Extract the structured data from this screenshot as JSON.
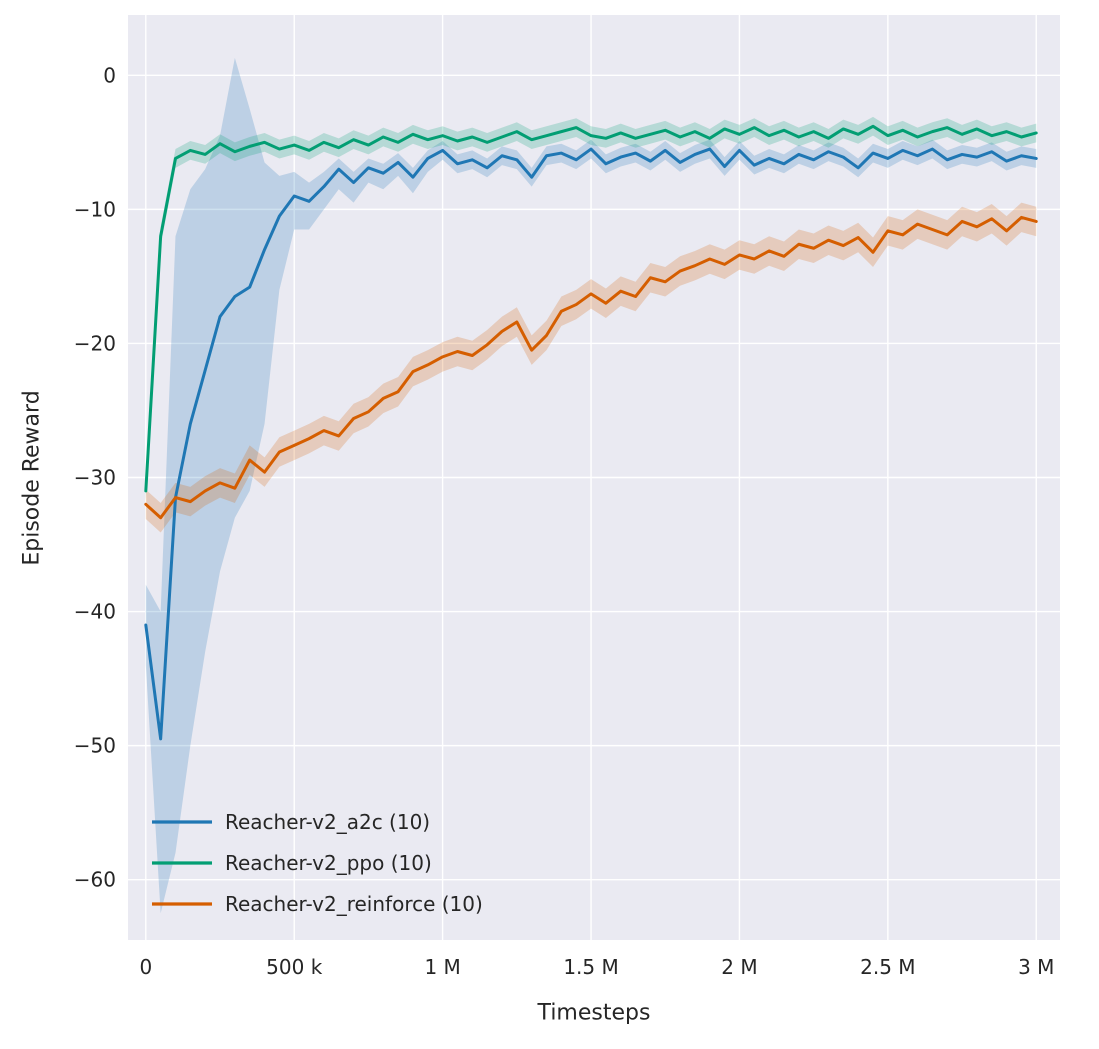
{
  "figure": {
    "background": "#ffffff",
    "axes_background": "#eaeaf2",
    "grid_color": "#ffffff",
    "text_color": "#262626",
    "band_opacity": 0.22
  },
  "chart_data": {
    "type": "line",
    "title": "",
    "xlabel": "Timesteps",
    "ylabel": "Episode Reward",
    "grid": true,
    "legend_position": "lower left",
    "xlim": [
      -60000,
      3080000
    ],
    "ylim": [
      -64.5,
      4.5
    ],
    "x_step": 50000,
    "xticks": [
      [
        0,
        "0"
      ],
      [
        500000,
        "500 k"
      ],
      [
        1000000,
        "1 M"
      ],
      [
        1500000,
        "1.5 M"
      ],
      [
        2000000,
        "2 M"
      ],
      [
        2500000,
        "2.5 M"
      ],
      [
        3000000,
        "3 M"
      ]
    ],
    "yticks": [
      [
        0,
        "0"
      ],
      [
        -10,
        "−10"
      ],
      [
        -20,
        "−20"
      ],
      [
        -30,
        "−30"
      ],
      [
        -40,
        "−40"
      ],
      [
        -50,
        "−50"
      ],
      [
        -60,
        "−60"
      ]
    ],
    "series": [
      {
        "id": "a2c",
        "name": "Reacher-v2_a2c (10)",
        "color": "#1f77b4",
        "values": [
          -41.0,
          -49.5,
          -31.5,
          -26.0,
          -22.0,
          -18.0,
          -16.5,
          -15.8,
          -13.0,
          -10.5,
          -9.0,
          -9.4,
          -8.3,
          -7.0,
          -8.0,
          -6.9,
          -7.3,
          -6.5,
          -7.6,
          -6.2,
          -5.6,
          -6.6,
          -6.3,
          -6.9,
          -6.0,
          -6.3,
          -7.6,
          -6.0,
          -5.8,
          -6.3,
          -5.5,
          -6.6,
          -6.1,
          -5.8,
          -6.4,
          -5.6,
          -6.5,
          -5.9,
          -5.5,
          -6.8,
          -5.6,
          -6.7,
          -6.2,
          -6.6,
          -5.9,
          -6.3,
          -5.7,
          -6.1,
          -6.9,
          -5.8,
          -6.2,
          -5.6,
          -6.0,
          -5.5,
          -6.3,
          -5.9,
          -6.1,
          -5.7,
          -6.4,
          -6.0,
          -6.2
        ],
        "band_lower": [
          -44,
          -62.5,
          -58,
          -50,
          -43,
          -37,
          -33,
          -31,
          -26,
          -16,
          -11.5,
          -11.5,
          -10,
          -8.5,
          -9.5,
          -8,
          -8.5,
          -7.5,
          -8.8,
          -7.2,
          -6.3,
          -7.3,
          -7.0,
          -7.6,
          -6.7,
          -7.0,
          -8.3,
          -6.7,
          -6.5,
          -7.0,
          -6.2,
          -7.3,
          -6.8,
          -6.5,
          -7.1,
          -6.3,
          -7.2,
          -6.6,
          -6.2,
          -7.5,
          -6.3,
          -7.4,
          -6.9,
          -7.3,
          -6.6,
          -7.0,
          -6.4,
          -6.8,
          -7.6,
          -6.5,
          -6.9,
          -6.3,
          -6.7,
          -6.2,
          -7.0,
          -6.6,
          -6.8,
          -6.4,
          -7.1,
          -6.7,
          -6.9
        ],
        "band_upper": [
          -38,
          -40,
          -12,
          -8.5,
          -7,
          -4.5,
          1.3,
          -2.5,
          -6.5,
          -7.5,
          -7.2,
          -8.0,
          -7.2,
          -6.2,
          -7.2,
          -6.2,
          -6.6,
          -5.8,
          -6.9,
          -5.6,
          -4.9,
          -5.9,
          -5.6,
          -6.2,
          -5.3,
          -5.6,
          -6.9,
          -5.3,
          -5.1,
          -5.6,
          -4.8,
          -5.9,
          -5.4,
          -5.1,
          -5.7,
          -4.9,
          -5.8,
          -5.2,
          -4.8,
          -6.1,
          -4.9,
          -6.0,
          -5.5,
          -5.9,
          -5.2,
          -5.6,
          -5.0,
          -5.4,
          -6.2,
          -5.1,
          -5.5,
          -4.9,
          -5.3,
          -4.8,
          -5.6,
          -5.2,
          -5.4,
          -5.0,
          -5.7,
          -5.3,
          -5.5
        ]
      },
      {
        "id": "ppo",
        "name": "Reacher-v2_ppo (10)",
        "color": "#029e73",
        "band_halfwidth": 0.7,
        "values": [
          -31.0,
          -12.0,
          -6.2,
          -5.6,
          -5.9,
          -5.1,
          -5.7,
          -5.3,
          -5.0,
          -5.5,
          -5.2,
          -5.6,
          -5.0,
          -5.4,
          -4.8,
          -5.2,
          -4.6,
          -5.0,
          -4.4,
          -4.8,
          -4.5,
          -4.9,
          -4.6,
          -5.0,
          -4.6,
          -4.2,
          -4.8,
          -4.5,
          -4.2,
          -3.9,
          -4.5,
          -4.7,
          -4.3,
          -4.7,
          -4.4,
          -4.1,
          -4.6,
          -4.2,
          -4.7,
          -4.0,
          -4.4,
          -3.9,
          -4.5,
          -4.1,
          -4.6,
          -4.2,
          -4.7,
          -4.0,
          -4.4,
          -3.8,
          -4.5,
          -4.1,
          -4.6,
          -4.2,
          -3.9,
          -4.4,
          -4.0,
          -4.5,
          -4.2,
          -4.6,
          -4.3
        ]
      },
      {
        "id": "reinforce",
        "name": "Reacher-v2_reinforce (10)",
        "color": "#d55e00",
        "band_halfwidth": 1.1,
        "values": [
          -32.0,
          -33.0,
          -31.5,
          -31.8,
          -31.0,
          -30.4,
          -30.8,
          -28.7,
          -29.6,
          -28.1,
          -27.6,
          -27.1,
          -26.5,
          -26.9,
          -25.6,
          -25.1,
          -24.1,
          -23.6,
          -22.1,
          -21.6,
          -21.0,
          -20.6,
          -20.9,
          -20.1,
          -19.1,
          -18.4,
          -20.5,
          -19.4,
          -17.6,
          -17.1,
          -16.3,
          -17.0,
          -16.1,
          -16.5,
          -15.1,
          -15.4,
          -14.6,
          -14.2,
          -13.7,
          -14.1,
          -13.4,
          -13.7,
          -13.1,
          -13.5,
          -12.6,
          -12.9,
          -12.3,
          -12.7,
          -12.1,
          -13.2,
          -11.6,
          -11.9,
          -11.1,
          -11.5,
          -11.9,
          -10.9,
          -11.3,
          -10.7,
          -11.6,
          -10.6,
          -10.9
        ]
      }
    ]
  }
}
